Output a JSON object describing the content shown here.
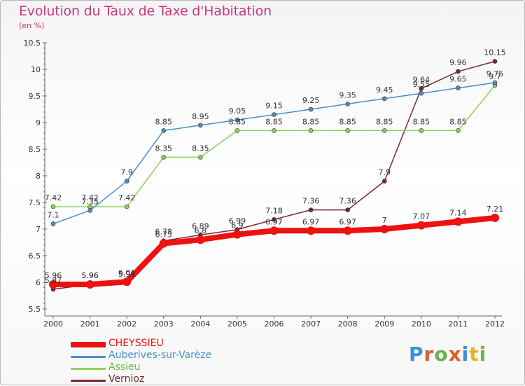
{
  "title": "Evolution du Taux de Taxe d'Habitation",
  "subtitle": "(en %)",
  "logo": {
    "text": "Proxiti",
    "letter_colors": [
      "#3a8fd6",
      "#e35a2c",
      "#67b544",
      "#e35a2c",
      "#3a8fd6",
      "#e8b22a",
      "#67b544"
    ]
  },
  "chart_data": {
    "type": "line",
    "x": [
      "2000",
      "2001",
      "2002",
      "2003",
      "2004",
      "2005",
      "2006",
      "2007",
      "2008",
      "2009",
      "2010",
      "2011",
      "2012"
    ],
    "ylim": [
      5.5,
      10.5
    ],
    "yticks": [
      "5.5",
      "6",
      "6.5",
      "7",
      "7.5",
      "8",
      "8.5",
      "9",
      "9.5",
      "10",
      "10.5"
    ],
    "grid": false,
    "legend_position": "bottom-left",
    "series": [
      {
        "name": "CHEYSSIEU",
        "color": "#ee1111",
        "values": [
          5.96,
          5.96,
          6.01,
          6.73,
          6.8,
          6.9,
          6.97,
          6.97,
          6.97,
          7,
          7.07,
          7.14,
          7.21
        ],
        "labels": [
          "5.96",
          "5.96",
          "6.01",
          "6.73",
          "6.8",
          "6.9",
          "6.97",
          "6.97",
          "6.97",
          "7",
          "7.07",
          "7.14",
          "7.21"
        ]
      },
      {
        "name": "Auberives-sur-Varèze",
        "color": "#4a8ec8",
        "values": [
          7.1,
          7.35,
          7.9,
          8.85,
          8.95,
          9.05,
          9.15,
          9.25,
          9.35,
          9.45,
          9.55,
          9.65,
          9.75
        ],
        "labels": [
          "7.1",
          "7.35",
          "7.9",
          "8.85",
          "8.95",
          "9.05",
          "9.15",
          "9.25",
          "9.35",
          "9.45",
          "9.55",
          "9.65",
          "9.75"
        ]
      },
      {
        "name": "Assieu",
        "color": "#8ed05a",
        "values": [
          7.42,
          7.42,
          7.42,
          8.35,
          8.35,
          8.85,
          8.85,
          8.85,
          8.85,
          8.85,
          8.85,
          8.85,
          9.7
        ],
        "labels": [
          "7.42",
          "7.42",
          "7.42",
          "8.35",
          "8.35",
          "8.85",
          "8.85",
          "8.85",
          "8.85",
          "8.85",
          "8.85",
          "8.85",
          "9.7"
        ]
      },
      {
        "name": "Vernioz",
        "color": "#7a2a2e",
        "values": [
          5.87,
          5.96,
          5.99,
          6.78,
          6.89,
          6.99,
          7.18,
          7.36,
          7.36,
          7.9,
          9.64,
          9.96,
          10.15
        ],
        "labels": [
          "5.87",
          "5.96",
          "5.99",
          "6.78",
          "6.89",
          "6.99",
          "7.18",
          "7.36",
          "7.36",
          "7.9",
          "9.64",
          "9.96",
          "10.15"
        ]
      }
    ]
  }
}
